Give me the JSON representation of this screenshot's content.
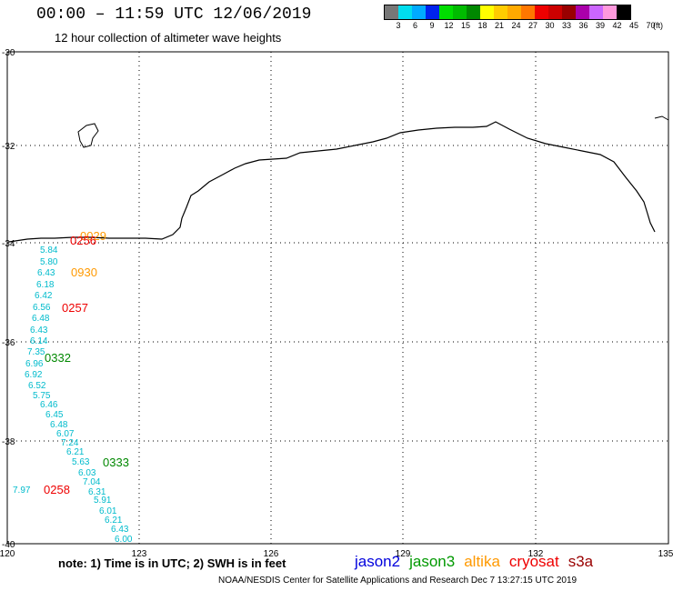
{
  "header": {
    "title": "00:00 – 11:59 UTC 12/06/2019",
    "subtitle": "12 hour collection of altimeter wave heights"
  },
  "colorbar": {
    "colors": [
      "#777777",
      "#00ddee",
      "#00aaff",
      "#0022ee",
      "#00dd00",
      "#00bb00",
      "#008800",
      "#ffff00",
      "#ffcc00",
      "#ffaa00",
      "#ff7700",
      "#ee0000",
      "#cc0000",
      "#990000",
      "#aa00aa",
      "#cc66ff",
      "#ff99dd",
      "#000000"
    ],
    "labels": [
      "3",
      "6",
      "9",
      "12",
      "15",
      "18",
      "21",
      "24",
      "27",
      "30",
      "33",
      "36",
      "39",
      "42",
      "45",
      "70"
    ],
    "unit": "(ft)"
  },
  "axes": {
    "lat_labels": [
      "-30",
      "-32",
      "-34",
      "-36",
      "-38",
      "-40"
    ],
    "lon_labels": [
      "120",
      "123",
      "126",
      "129",
      "132",
      "135"
    ]
  },
  "time_labels": [
    {
      "text": "0029",
      "color": "#ff9900"
    },
    {
      "text": "0256",
      "color": "#ee0000"
    },
    {
      "text": "0930",
      "color": "#ff9900"
    },
    {
      "text": "0257",
      "color": "#ee0000"
    },
    {
      "text": "0332",
      "color": "#008800"
    },
    {
      "text": "0333",
      "color": "#008800"
    },
    {
      "text": "0258",
      "color": "#ee0000"
    }
  ],
  "wave_values": {
    "cyan_track": [
      "5.84",
      "5.80",
      "6.43",
      "6.18",
      "6.42",
      "6.56",
      "6.48",
      "6.43",
      "6.14",
      "7.35",
      "6.96",
      "6.92",
      "6.52",
      "5.75",
      "6.46",
      "6.45",
      "6.48",
      "6.07",
      "7.24",
      "6.21",
      "5.63",
      "6.03",
      "7.04",
      "6.31",
      "5.91",
      "6.01",
      "6.21",
      "6.43",
      "6.00"
    ],
    "single": "7.97"
  },
  "footer": {
    "note": "note:  1) Time is in UTC;  2) SWH is in feet",
    "satellites": [
      {
        "name": "jason2",
        "color": "#0000dd"
      },
      {
        "name": "jason3",
        "color": "#009900"
      },
      {
        "name": "altika",
        "color": "#ff9900"
      },
      {
        "name": "cryosat",
        "color": "#ee0000"
      },
      {
        "name": "s3a",
        "color": "#990000"
      }
    ],
    "credit": "NOAA/NESDIS Center for Satellite Applications and Research     Dec  7 13:27:15 UTC 2019"
  }
}
